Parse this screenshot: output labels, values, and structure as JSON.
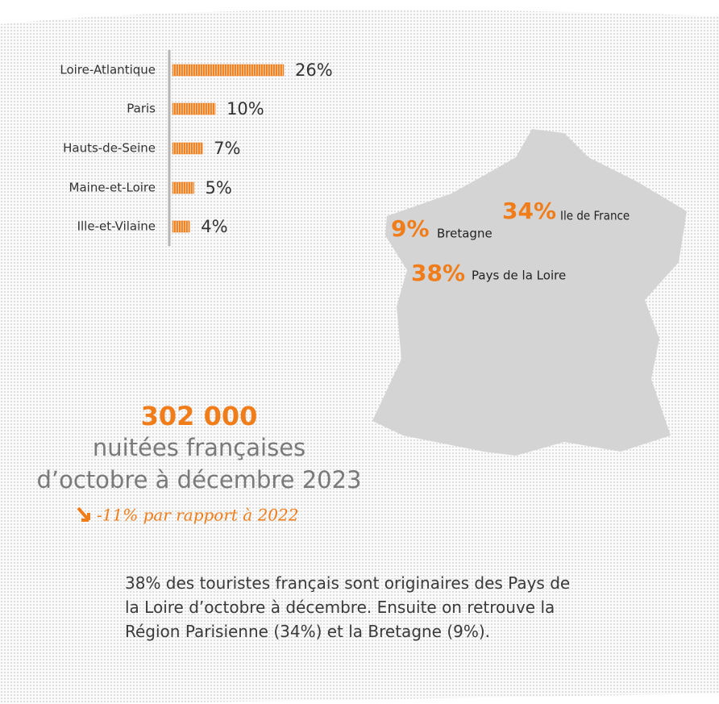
{
  "chart_data": {
    "type": "bar",
    "categories": [
      "Loire-Atlantique",
      "Paris",
      "Hauts-de-Seine",
      "Maine-et-Loire",
      "Ille-et-Vilaine"
    ],
    "values": [
      26,
      10,
      7,
      5,
      4
    ],
    "value_labels": [
      "26%",
      "10%",
      "7%",
      "5%",
      "4%"
    ],
    "color": "#f07d1a"
  },
  "map_labels": [
    {
      "share": "34%",
      "region": "Ile de France"
    },
    {
      "share": "9%",
      "region": "Bretagne"
    },
    {
      "share": "38%",
      "region": "Pays de la Loire"
    }
  ],
  "stats": {
    "total": "302 000",
    "line1": "nuitées françaises",
    "line2": "d’octobre à décembre 2023",
    "change": "-11% par rapport à 2022"
  },
  "paragraph": [
    "38% des touristes français sont originaires des Pays de",
    "la Loire d’octobre à décembre. Ensuite on retrouve la",
    "Région Parisienne (34%) et la Bretagne (9%)."
  ]
}
